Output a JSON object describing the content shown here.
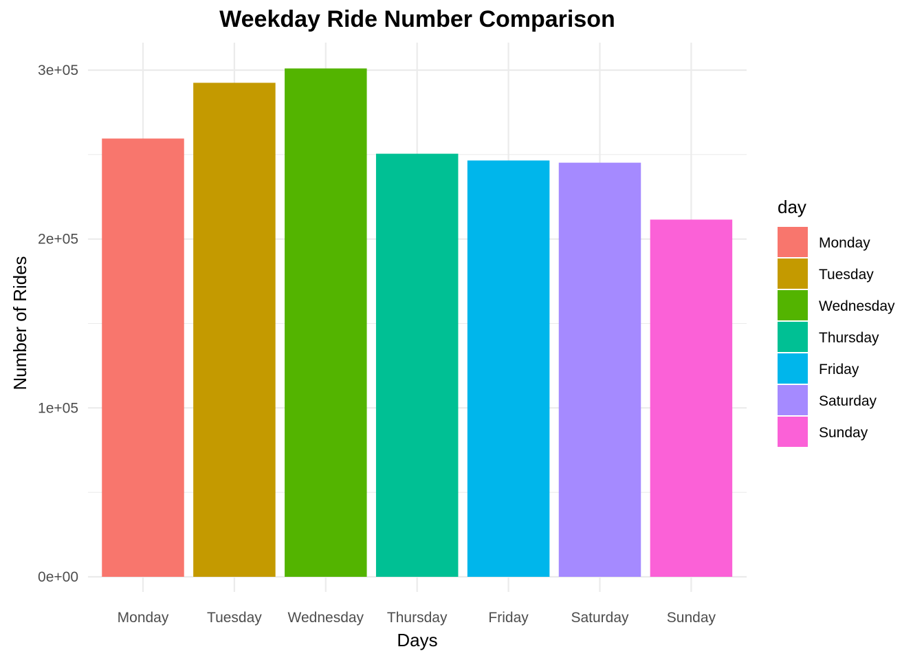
{
  "chart_data": {
    "type": "bar",
    "title": "Weekday Ride Number Comparison",
    "xlabel": "Days",
    "ylabel": "Number of Rides",
    "categories": [
      "Monday",
      "Tuesday",
      "Wednesday",
      "Thursday",
      "Friday",
      "Saturday",
      "Sunday"
    ],
    "values": [
      259500,
      292500,
      301000,
      250500,
      246500,
      245200,
      211500
    ],
    "colors": [
      "#F8766D",
      "#C49A00",
      "#53B400",
      "#00C094",
      "#00B6EB",
      "#A58AFF",
      "#FB61D7"
    ],
    "ylim": [
      0,
      315000
    ],
    "yticks": [
      0,
      100000,
      200000,
      300000
    ],
    "ytick_labels": [
      "0e+00",
      "1e+05",
      "2e+05",
      "3e+05"
    ],
    "legend": {
      "title": "day",
      "position": "right",
      "entries": [
        "Monday",
        "Tuesday",
        "Wednesday",
        "Thursday",
        "Friday",
        "Saturday",
        "Sunday"
      ]
    },
    "grid": true
  }
}
